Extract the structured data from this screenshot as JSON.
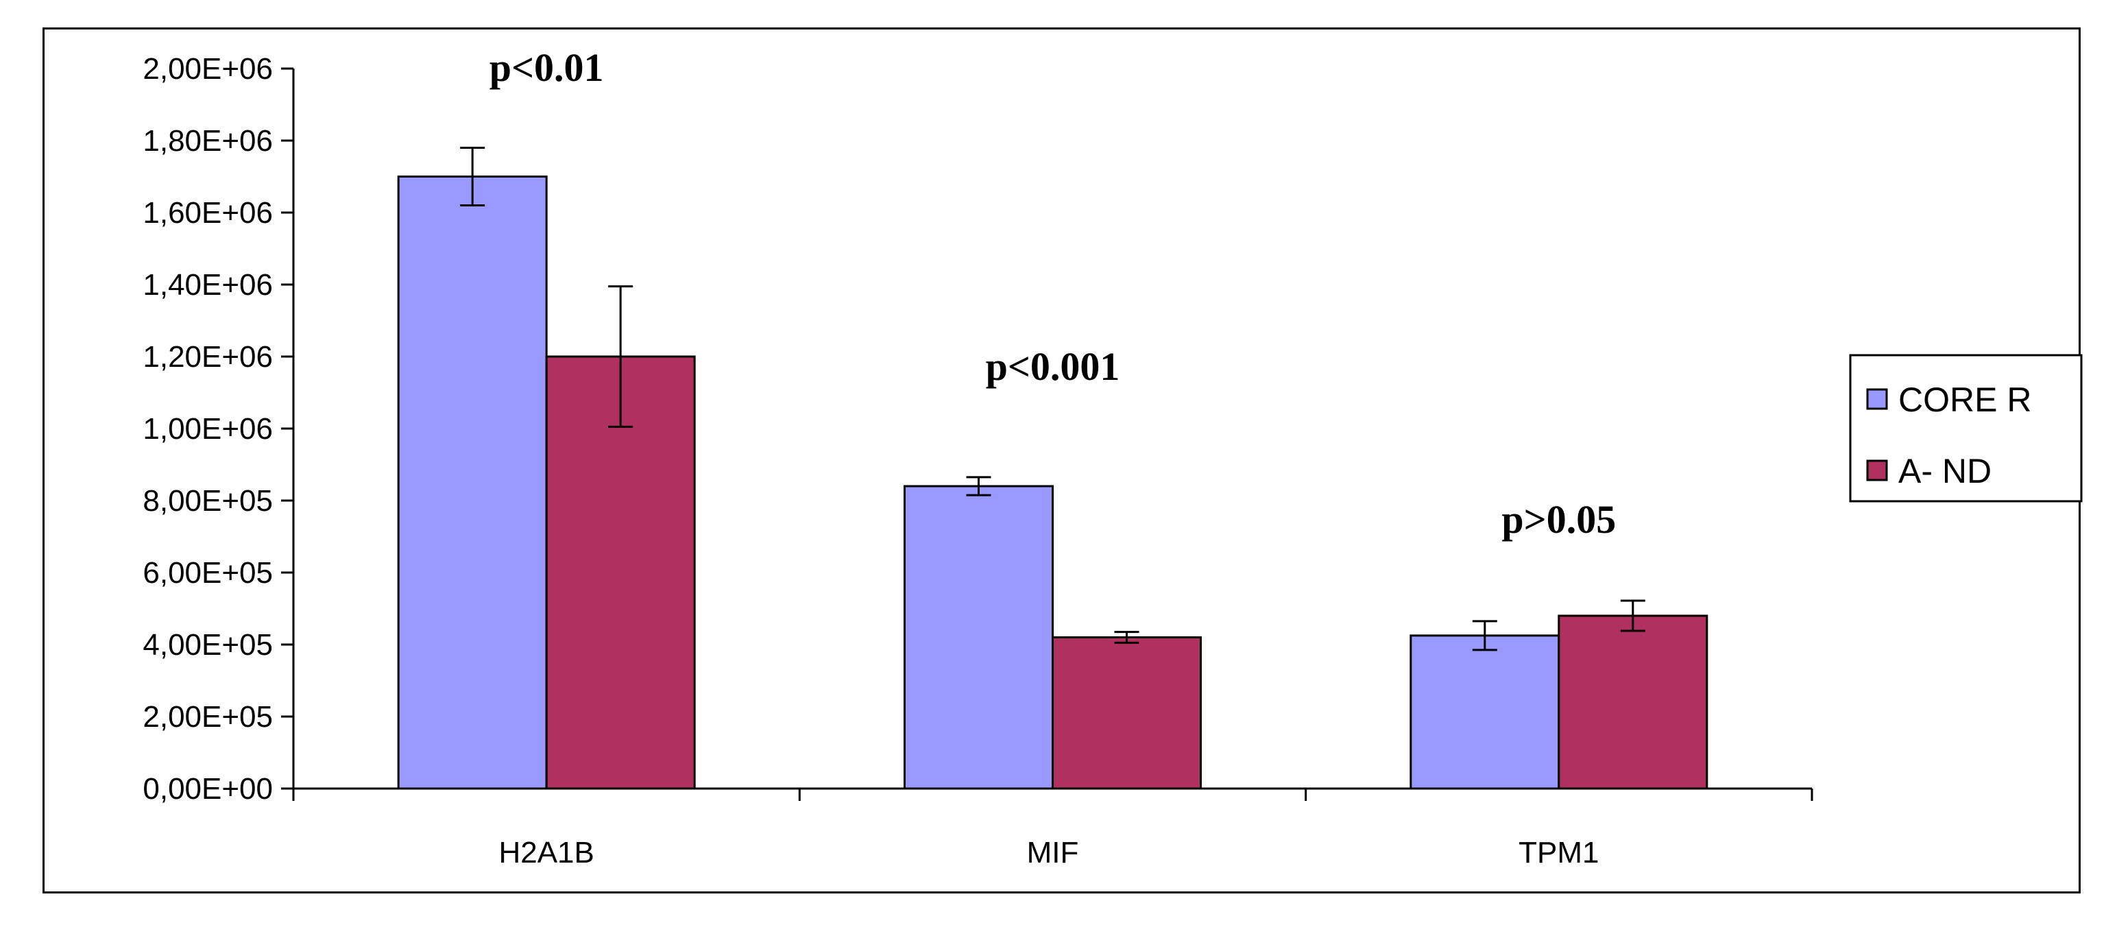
{
  "chart_data": {
    "type": "bar",
    "title": "",
    "xlabel": "",
    "ylabel": "",
    "categories": [
      "H2A1B",
      "MIF",
      "TPM1"
    ],
    "series": [
      {
        "name": "CORE R",
        "color": "#9999ff",
        "values": [
          1700000,
          840000,
          425000
        ],
        "errors": [
          80000,
          25000,
          40000
        ]
      },
      {
        "name": "A- ND",
        "color": "#b03060",
        "values": [
          1200000,
          420000,
          480000
        ],
        "errors": [
          195000,
          15000,
          42000
        ]
      }
    ],
    "ylim": [
      0,
      2000000
    ],
    "yticks": [
      {
        "value": 0,
        "label": "0,00E+00"
      },
      {
        "value": 200000,
        "label": "2,00E+05"
      },
      {
        "value": 400000,
        "label": "4,00E+05"
      },
      {
        "value": 600000,
        "label": "6,00E+05"
      },
      {
        "value": 800000,
        "label": "8,00E+05"
      },
      {
        "value": 1000000,
        "label": "1,00E+06"
      },
      {
        "value": 1200000,
        "label": "1,20E+06"
      },
      {
        "value": 1400000,
        "label": "1,40E+06"
      },
      {
        "value": 1600000,
        "label": "1,60E+06"
      },
      {
        "value": 1800000,
        "label": "1,80E+06"
      },
      {
        "value": 2000000,
        "label": "2,00E+06"
      }
    ],
    "annotations": [
      {
        "category": "H2A1B",
        "text": "p<0.01",
        "y_value": 2000000
      },
      {
        "category": "MIF",
        "text": "p<0.001",
        "y_value": 1170000
      },
      {
        "category": "TPM1",
        "text": "p>0.05",
        "y_value": 745000
      }
    ],
    "legend": {
      "position": "right"
    }
  }
}
